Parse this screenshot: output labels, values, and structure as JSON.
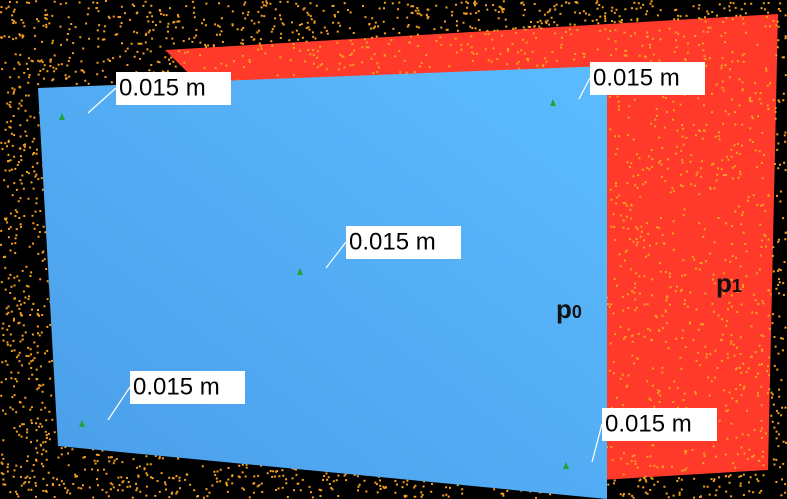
{
  "measurements": [
    {
      "label": "0.015 m"
    },
    {
      "label": "0.015 m"
    },
    {
      "label": "0.015 m"
    },
    {
      "label": "0.015 m"
    },
    {
      "label": "0.015 m"
    }
  ],
  "planes": [
    {
      "name": "p",
      "subscript": "0"
    },
    {
      "name": "p",
      "subscript": "1"
    }
  ]
}
